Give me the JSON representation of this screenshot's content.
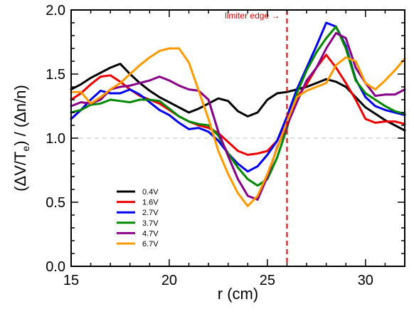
{
  "chart_data": {
    "type": "line",
    "xlabel": "r (cm)",
    "ylabel_parts": [
      "(ΔV/T",
      "e",
      ") / (Δn/n)"
    ],
    "xlim": [
      15,
      32
    ],
    "ylim": [
      0.0,
      2.0
    ],
    "xticks": [
      15,
      20,
      25,
      30
    ],
    "yticks": [
      0.0,
      0.5,
      1.0,
      1.5,
      2.0
    ],
    "x_minor_step": 1,
    "y_minor_step": 0.1,
    "xtick_labels": [
      "15",
      "20",
      "25",
      "30"
    ],
    "ytick_labels": [
      "0.0",
      "0.5",
      "1.0",
      "1.5",
      "2.0"
    ],
    "reference_line": {
      "y": 1.0,
      "color": "#cccccc",
      "style": "dashed"
    },
    "limiter": {
      "x": 26,
      "label": "limiter edge →",
      "color": "#dd0000"
    },
    "legend_position": "lower-left",
    "series": [
      {
        "name": "0.4V",
        "color": "#000000",
        "x": [
          15,
          15.5,
          16,
          16.5,
          17,
          17.5,
          18,
          18.5,
          19,
          19.5,
          20,
          20.5,
          21,
          21.5,
          22,
          22.5,
          23,
          23.5,
          24,
          24.5,
          25,
          25.5,
          26,
          26.5,
          27,
          27.5,
          28,
          28.5,
          29,
          29.5,
          30,
          30.5,
          31,
          31.5,
          32
        ],
        "y": [
          1.38,
          1.42,
          1.47,
          1.51,
          1.55,
          1.58,
          1.5,
          1.43,
          1.37,
          1.32,
          1.28,
          1.24,
          1.2,
          1.23,
          1.27,
          1.31,
          1.29,
          1.21,
          1.17,
          1.2,
          1.3,
          1.35,
          1.36,
          1.38,
          1.4,
          1.43,
          1.46,
          1.44,
          1.4,
          1.32,
          1.24,
          1.19,
          1.14,
          1.1,
          1.06
        ]
      },
      {
        "name": "1.6V",
        "color": "#ee0000",
        "x": [
          15,
          15.5,
          16,
          16.5,
          17,
          17.5,
          18,
          18.5,
          19,
          19.5,
          20,
          20.5,
          21,
          21.5,
          22,
          22.5,
          23,
          23.5,
          24,
          24.5,
          25,
          25.5,
          26,
          26.5,
          27,
          27.5,
          28,
          28.5,
          29,
          29.5,
          30,
          30.5,
          31,
          31.5,
          32
        ],
        "y": [
          1.3,
          1.35,
          1.42,
          1.48,
          1.49,
          1.44,
          1.38,
          1.33,
          1.3,
          1.27,
          1.22,
          1.17,
          1.13,
          1.1,
          1.08,
          1.04,
          0.97,
          0.9,
          0.87,
          0.88,
          0.9,
          0.98,
          1.15,
          1.32,
          1.42,
          1.55,
          1.65,
          1.55,
          1.43,
          1.3,
          1.15,
          1.12,
          1.13,
          1.13,
          1.11
        ]
      },
      {
        "name": "2.7V",
        "color": "#0000ee",
        "x": [
          15,
          15.5,
          16,
          16.5,
          17,
          17.5,
          18,
          18.5,
          19,
          19.5,
          20,
          20.5,
          21,
          21.5,
          22,
          22.5,
          23,
          23.5,
          24,
          24.5,
          25,
          25.5,
          26,
          26.5,
          27,
          27.5,
          28,
          28.5,
          29,
          29.5,
          30,
          30.5,
          31,
          31.5,
          32
        ],
        "y": [
          1.15,
          1.22,
          1.3,
          1.37,
          1.35,
          1.35,
          1.38,
          1.34,
          1.28,
          1.22,
          1.18,
          1.12,
          1.07,
          1.08,
          1.05,
          0.98,
          0.88,
          0.8,
          0.74,
          0.78,
          0.87,
          0.98,
          1.17,
          1.38,
          1.55,
          1.72,
          1.9,
          1.87,
          1.72,
          1.46,
          1.32,
          1.25,
          1.22,
          1.2,
          1.18
        ]
      },
      {
        "name": "3.7V",
        "color": "#008800",
        "x": [
          15,
          15.5,
          16,
          16.5,
          17,
          17.5,
          18,
          18.5,
          19,
          19.5,
          20,
          20.5,
          21,
          21.5,
          22,
          22.5,
          23,
          23.5,
          24,
          24.5,
          25,
          25.5,
          26,
          26.5,
          27,
          27.5,
          28,
          28.5,
          29,
          29.5,
          30,
          30.5,
          31,
          31.5,
          32
        ],
        "y": [
          1.2,
          1.22,
          1.26,
          1.27,
          1.3,
          1.29,
          1.28,
          1.3,
          1.3,
          1.29,
          1.23,
          1.17,
          1.13,
          1.11,
          1.1,
          1.02,
          0.88,
          0.77,
          0.68,
          0.63,
          0.68,
          0.85,
          1.08,
          1.35,
          1.53,
          1.67,
          1.78,
          1.87,
          1.7,
          1.45,
          1.35,
          1.3,
          1.25,
          1.21,
          1.19
        ]
      },
      {
        "name": "4.7V",
        "color": "#880088",
        "x": [
          15,
          15.5,
          16,
          16.5,
          17,
          17.5,
          18,
          18.5,
          19,
          19.5,
          20,
          20.5,
          21,
          21.5,
          22,
          22.5,
          23,
          23.5,
          24,
          24.5,
          25,
          25.5,
          26,
          26.5,
          27,
          27.5,
          28,
          28.5,
          29,
          29.5,
          30,
          30.5,
          31,
          31.5,
          32
        ],
        "y": [
          1.25,
          1.28,
          1.27,
          1.3,
          1.38,
          1.4,
          1.41,
          1.43,
          1.45,
          1.48,
          1.45,
          1.41,
          1.38,
          1.37,
          1.3,
          1.05,
          0.86,
          0.68,
          0.55,
          0.52,
          0.7,
          0.93,
          1.1,
          1.28,
          1.45,
          1.55,
          1.7,
          1.82,
          1.78,
          1.55,
          1.43,
          1.33,
          1.34,
          1.34,
          1.38
        ]
      },
      {
        "name": "6.7V",
        "color": "#ff9900",
        "x": [
          15,
          15.5,
          16,
          16.5,
          17,
          17.5,
          18,
          18.5,
          19,
          19.5,
          20,
          20.5,
          21,
          21.5,
          22,
          22.5,
          23,
          23.5,
          24,
          24.5,
          25,
          25.5,
          26,
          26.5,
          27,
          27.5,
          28,
          28.5,
          29,
          29.5,
          30,
          30.5,
          31,
          31.5,
          32
        ],
        "y": [
          1.36,
          1.36,
          1.27,
          1.32,
          1.38,
          1.43,
          1.5,
          1.57,
          1.63,
          1.68,
          1.7,
          1.7,
          1.59,
          1.37,
          1.15,
          0.9,
          0.72,
          0.57,
          0.47,
          0.55,
          0.72,
          0.92,
          1.13,
          1.32,
          1.37,
          1.4,
          1.43,
          1.57,
          1.63,
          1.6,
          1.43,
          1.38,
          1.45,
          1.53,
          1.62
        ]
      }
    ]
  }
}
